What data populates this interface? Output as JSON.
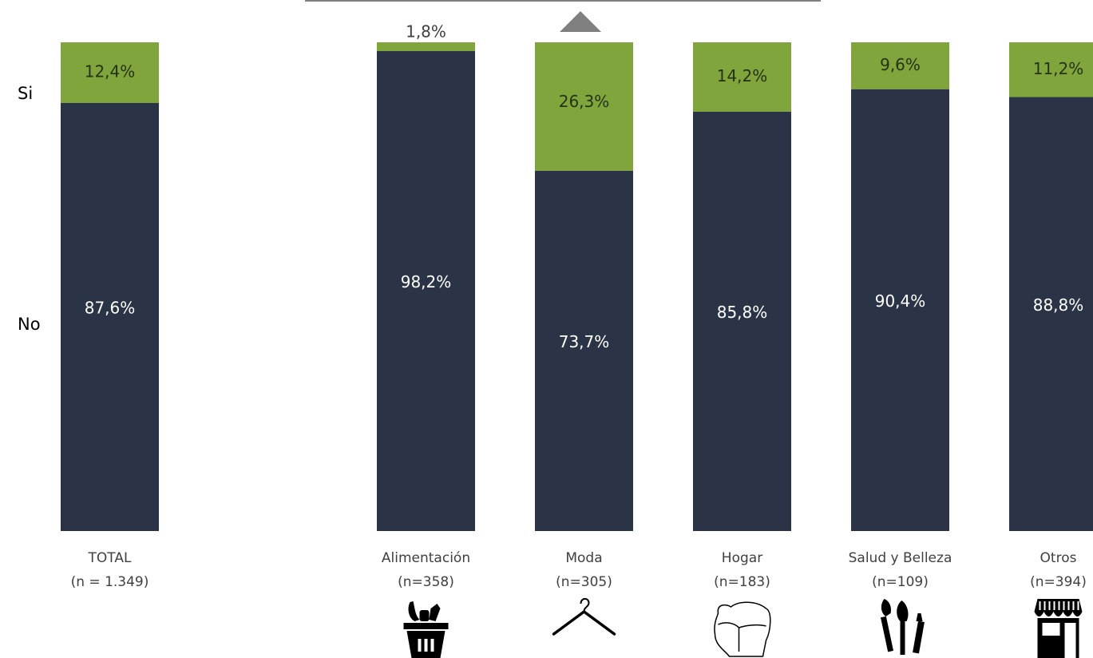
{
  "chart_data": {
    "type": "bar",
    "stacked": true,
    "percent": true,
    "categories": [
      "TOTAL",
      "Alimentación",
      "Moda",
      "Hogar",
      "Salud y Belleza",
      "Otros"
    ],
    "sample_sizes": [
      "(n = 1.349)",
      "(n=358)",
      "(n=305)",
      "(n=183)",
      "(n=109)",
      "(n=394)"
    ],
    "category_icons": [
      "",
      "shopping-basket-icon",
      "clothes-hanger-icon",
      "sofa-icon",
      "makeup-brushes-icon",
      "storefront-icon"
    ],
    "series": [
      {
        "name": "No",
        "values": [
          87.6,
          98.2,
          73.7,
          85.8,
          90.4,
          88.8
        ],
        "labels": [
          "87,6%",
          "98,2%",
          "73,7%",
          "85,8%",
          "90,4%",
          "88,8%"
        ]
      },
      {
        "name": "Si",
        "values": [
          12.4,
          1.8,
          26.3,
          14.2,
          9.6,
          11.2
        ],
        "labels": [
          "12,4%",
          "1,8%",
          "26,3%",
          "14,2%",
          "9,6%",
          "11,2%"
        ]
      }
    ],
    "ylim": [
      0,
      100
    ],
    "grid": false,
    "legend": "left",
    "highlight": {
      "category": "Moda",
      "marker": "up-triangle"
    },
    "colors": {
      "No": "#2b3447",
      "Si": "#7fa53c",
      "label_on_no": "#ffffff",
      "label_on_si": "#263214",
      "marker": "#808080"
    }
  }
}
